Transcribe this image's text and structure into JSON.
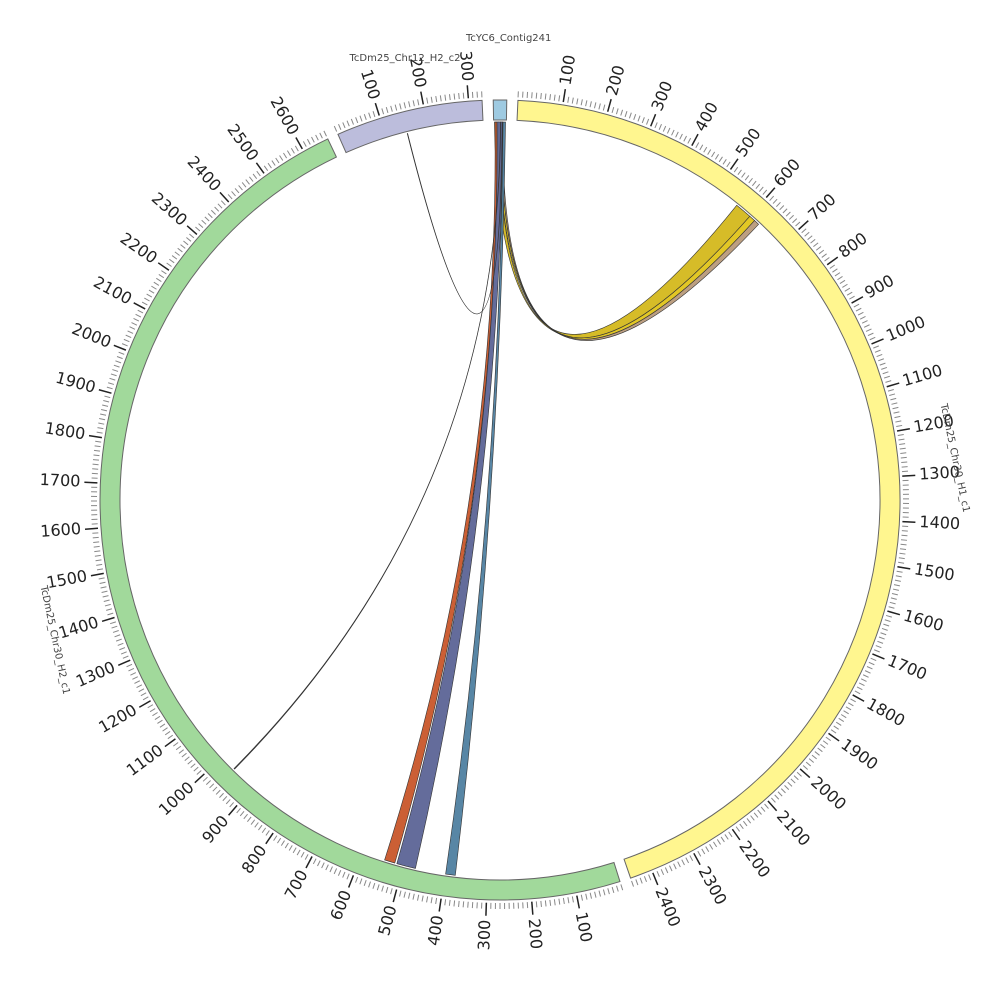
{
  "chart_data": {
    "type": "chord",
    "segments": [
      {
        "name": "TcYC6_Contig241",
        "color": "#9ecae1",
        "length": 30,
        "ticks": []
      },
      {
        "name": "TcDm25_Chr30_H1_c1",
        "color": "#fff68f",
        "length": 2450,
        "ticks": [
          100,
          200,
          300,
          400,
          500,
          600,
          700,
          800,
          900,
          1000,
          1100,
          1200,
          1300,
          1400,
          1500,
          1600,
          1700,
          1800,
          1900,
          2000,
          2100,
          2200,
          2300,
          2400
        ]
      },
      {
        "name": "TcDm25_Chr30_H2_c1",
        "color": "#a1d99b",
        "length": 2660,
        "ticks": [
          100,
          200,
          300,
          400,
          500,
          600,
          700,
          800,
          900,
          1000,
          1100,
          1200,
          1300,
          1400,
          1500,
          1600,
          1700,
          1800,
          1900,
          2000,
          2100,
          2200,
          2300,
          2400,
          2500,
          2600
        ]
      },
      {
        "name": "TcDm25_Chr12_H2_c2",
        "color": "#bcbddc",
        "length": 330,
        "ticks": [
          100,
          200,
          300
        ]
      }
    ],
    "links": [
      {
        "source": "TcYC6_Contig241",
        "source_range": [
          2,
          12
        ],
        "target": "TcDm25_Chr30_H1_c1",
        "target_range": [
          560,
          600
        ],
        "color": "#d4b81c"
      },
      {
        "source": "TcYC6_Contig241",
        "source_range": [
          12,
          17
        ],
        "target": "TcDm25_Chr30_H1_c1",
        "target_range": [
          600,
          615
        ],
        "color": "#e0c419"
      },
      {
        "source": "TcYC6_Contig241",
        "source_range": [
          17,
          21
        ],
        "target": "TcDm25_Chr30_H1_c1",
        "target_range": [
          615,
          628
        ],
        "color": "#b89a7a"
      },
      {
        "source": "TcYC6_Contig241",
        "source_range": [
          3,
          8
        ],
        "target": "TcDm25_Chr30_H2_c1",
        "target_range": [
          520,
          545
        ],
        "color": "#c8562a"
      },
      {
        "source": "TcYC6_Contig241",
        "source_range": [
          8,
          22
        ],
        "target": "TcDm25_Chr30_H2_c1",
        "target_range": [
          470,
          515
        ],
        "color": "#5c6496"
      },
      {
        "source": "TcYC6_Contig241",
        "source_range": [
          22,
          28
        ],
        "target": "TcDm25_Chr30_H2_c1",
        "target_range": [
          375,
          398
        ],
        "color": "#4f7fa0"
      },
      {
        "source": "TcYC6_Contig241",
        "source_range": [
          16,
          16.5
        ],
        "target": "TcDm25_Chr30_H2_c1",
        "target_range": [
          960,
          962
        ],
        "color": "#333333"
      },
      {
        "source": "TcDm25_Chr12_H2_c2",
        "source_range": [
          150,
          151
        ],
        "target": "TcYC6_Contig241",
        "target_range": [
          20,
          20.5
        ],
        "color": "#333333"
      }
    ]
  }
}
